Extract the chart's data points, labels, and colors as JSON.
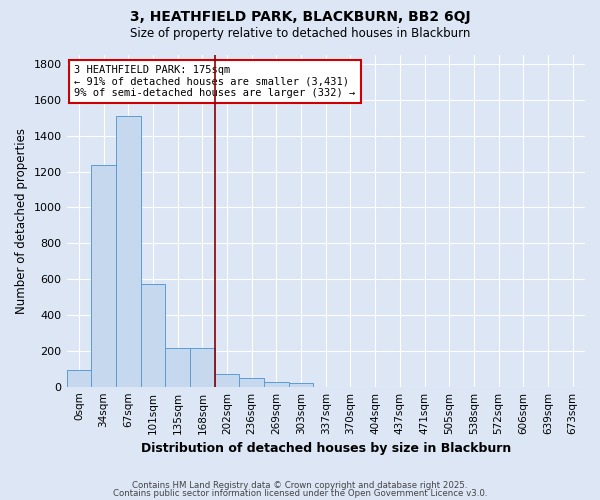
{
  "title": "3, HEATHFIELD PARK, BLACKBURN, BB2 6QJ",
  "subtitle": "Size of property relative to detached houses in Blackburn",
  "xlabel": "Distribution of detached houses by size in Blackburn",
  "ylabel": "Number of detached properties",
  "bar_labels": [
    "0sqm",
    "34sqm",
    "67sqm",
    "101sqm",
    "135sqm",
    "168sqm",
    "202sqm",
    "236sqm",
    "269sqm",
    "303sqm",
    "337sqm",
    "370sqm",
    "404sqm",
    "437sqm",
    "471sqm",
    "505sqm",
    "538sqm",
    "572sqm",
    "606sqm",
    "639sqm",
    "673sqm"
  ],
  "bar_values": [
    95,
    1235,
    1510,
    570,
    215,
    215,
    70,
    50,
    28,
    20,
    0,
    0,
    0,
    0,
    0,
    0,
    0,
    0,
    0,
    0,
    0
  ],
  "bar_color": "#c5d8ed",
  "bar_edge_color": "#5b9bd5",
  "vline_x": 5.5,
  "vline_color": "#8b0000",
  "annotation_line1": "3 HEATHFIELD PARK: 175sqm",
  "annotation_line2": "← 91% of detached houses are smaller (3,431)",
  "annotation_line3": "9% of semi-detached houses are larger (332) →",
  "annotation_box_color": "#ffffff",
  "annotation_box_edge": "#cc0000",
  "ylim": [
    0,
    1850
  ],
  "yticks": [
    0,
    200,
    400,
    600,
    800,
    1000,
    1200,
    1400,
    1600,
    1800
  ],
  "background_color": "#dce6f5",
  "grid_color": "#ffffff",
  "footer_line1": "Contains HM Land Registry data © Crown copyright and database right 2025.",
  "footer_line2": "Contains public sector information licensed under the Open Government Licence v3.0."
}
